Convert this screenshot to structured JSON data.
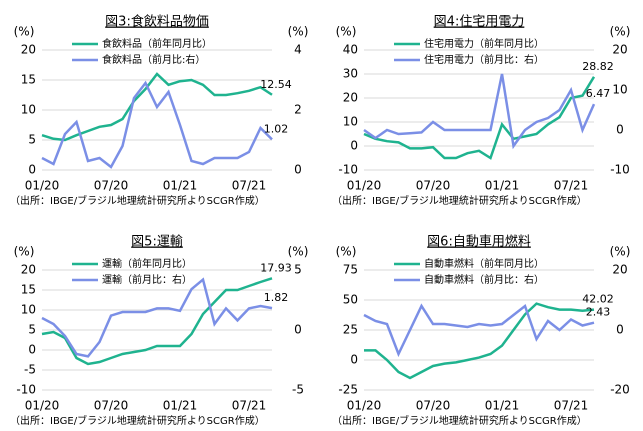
{
  "chart_data": [
    {
      "type": "line",
      "title": "図3:食飲料品物価",
      "ylabel": "(%)",
      "y2label": "(%)",
      "categories": [
        "01/20",
        null,
        null,
        null,
        null,
        null,
        "07/20",
        null,
        null,
        null,
        null,
        null,
        "01/21",
        null,
        null,
        null,
        null,
        null,
        "07/21",
        null,
        null
      ],
      "series": [
        {
          "name": "食飲料品（前年同月比）",
          "color": "#1fb38f",
          "values": [
            5.8,
            5.2,
            5.0,
            5.8,
            6.5,
            7.2,
            7.5,
            8.5,
            11.5,
            13.5,
            16,
            14.2,
            14.8,
            15.0,
            14.2,
            12.5,
            12.5,
            12.8,
            13.2,
            13.8,
            12.54
          ]
        },
        {
          "name": "食飲料品（前月比:右）",
          "color": "#7b8fe6",
          "axis": "y2",
          "values": [
            0.4,
            0.2,
            1.2,
            1.6,
            0.3,
            0.4,
            0.1,
            0.8,
            2.4,
            2.9,
            2.1,
            2.6,
            1.5,
            0.3,
            0.2,
            0.4,
            0.4,
            0.4,
            0.6,
            1.4,
            1.02
          ]
        }
      ],
      "ylim": [
        0,
        20
      ],
      "yticks": [
        0,
        5,
        10,
        15,
        20
      ],
      "y2lim": [
        0,
        4
      ],
      "y2ticks": [
        0,
        2,
        4
      ],
      "grid": true,
      "legend": "upper left",
      "source": "（出所：IBGE/ブラジル地理統計研究所よりSCGR作成）"
    },
    {
      "type": "line",
      "title": "図4:住宅用電力",
      "ylabel": "(%)",
      "y2label": "(%)",
      "categories": [
        "01/20",
        null,
        null,
        null,
        null,
        null,
        "07/20",
        null,
        null,
        null,
        null,
        null,
        "01/21",
        null,
        null,
        null,
        null,
        null,
        "07/21",
        null,
        null
      ],
      "series": [
        {
          "name": "住宅用電力（前年同月比）",
          "color": "#1fb38f",
          "values": [
            5,
            3,
            2,
            1.5,
            -1,
            -1,
            -0.5,
            -5,
            -5,
            -3,
            -2,
            -5,
            9,
            3,
            4,
            5,
            9,
            12,
            20,
            21,
            28.82
          ]
        },
        {
          "name": "住宅用電力（前月比：右）",
          "color": "#7b8fe6",
          "axis": "y2",
          "values": [
            0,
            -2,
            0,
            -1,
            -0.8,
            -0.6,
            2,
            0,
            0,
            0,
            0,
            0,
            14,
            -4,
            0,
            2,
            3,
            5,
            10,
            0,
            6.47
          ]
        }
      ],
      "ylim": [
        -10,
        40
      ],
      "yticks": [
        -10,
        0,
        10,
        20,
        30,
        40
      ],
      "y2lim": [
        -10,
        20
      ],
      "y2ticks": [
        -10,
        0,
        10,
        20
      ],
      "grid": true,
      "legend": "upper left",
      "source": "（出所：IBGE/ブラジル地理統計研究所よりSCGR作成）"
    },
    {
      "type": "line",
      "title": "図5:運輸",
      "ylabel": "(%)",
      "y2label": "(%)",
      "categories": [
        "01/20",
        null,
        null,
        null,
        null,
        null,
        "07/20",
        null,
        null,
        null,
        null,
        null,
        "01/21",
        null,
        null,
        null,
        null,
        null,
        "07/21",
        null,
        null
      ],
      "series": [
        {
          "name": "運輸（前年同月比）",
          "color": "#1fb38f",
          "values": [
            4,
            4.5,
            3,
            -2,
            -3.5,
            -3,
            -2,
            -1,
            -0.5,
            0,
            1,
            1,
            1,
            4,
            9,
            12,
            15,
            15,
            16,
            17,
            17.93
          ]
        },
        {
          "name": "運輸（前月比：右）",
          "color": "#7b8fe6",
          "axis": "y2",
          "values": [
            1,
            0.5,
            -0.5,
            -2,
            -2.2,
            -1,
            1.2,
            1.5,
            1.5,
            1.5,
            1.8,
            1.8,
            1.6,
            3.4,
            4.2,
            0.5,
            1.8,
            0.8,
            1.8,
            2,
            1.82
          ]
        }
      ],
      "ylim": [
        -10,
        20
      ],
      "yticks": [
        -10,
        -5,
        0,
        5,
        10,
        15,
        20
      ],
      "y2lim": [
        -5,
        5
      ],
      "y2ticks": [
        -5,
        0,
        5
      ],
      "grid": true,
      "legend": "upper left",
      "source": "（出所：IBGE/ブラジル地理統計研究所よりSCGR作成）"
    },
    {
      "type": "line",
      "title": "図6:自動車用燃料",
      "ylabel": "(%)",
      "y2label": "(%)",
      "categories": [
        "01/20",
        null,
        null,
        null,
        null,
        null,
        "07/20",
        null,
        null,
        null,
        null,
        null,
        "01/21",
        null,
        null,
        null,
        null,
        null,
        "07/21",
        null,
        null
      ],
      "series": [
        {
          "name": "自動車燃料（前年同月比）",
          "color": "#1fb38f",
          "values": [
            8,
            8,
            0,
            -10,
            -15,
            -10,
            -5,
            -3,
            -2,
            0,
            2,
            5,
            12,
            25,
            38,
            47,
            44,
            42,
            42,
            41,
            42.02
          ]
        },
        {
          "name": "自動車燃料（前月比：右）",
          "color": "#7b8fe6",
          "axis": "y2",
          "values": [
            5,
            3,
            2,
            -8,
            0,
            8,
            2,
            2,
            1.5,
            1,
            2,
            1.5,
            2,
            5,
            8,
            -3,
            3,
            0,
            3.5,
            1.5,
            2.43
          ]
        }
      ],
      "ylim": [
        -25,
        75
      ],
      "yticks": [
        -25,
        0,
        25,
        50,
        75
      ],
      "y2lim": [
        -20,
        20
      ],
      "y2ticks": [
        -20,
        0,
        20
      ],
      "grid": true,
      "legend": "upper left",
      "source": "（出所：IBGE/ブラジル地理統計研究所よりSCGR作成）"
    }
  ]
}
